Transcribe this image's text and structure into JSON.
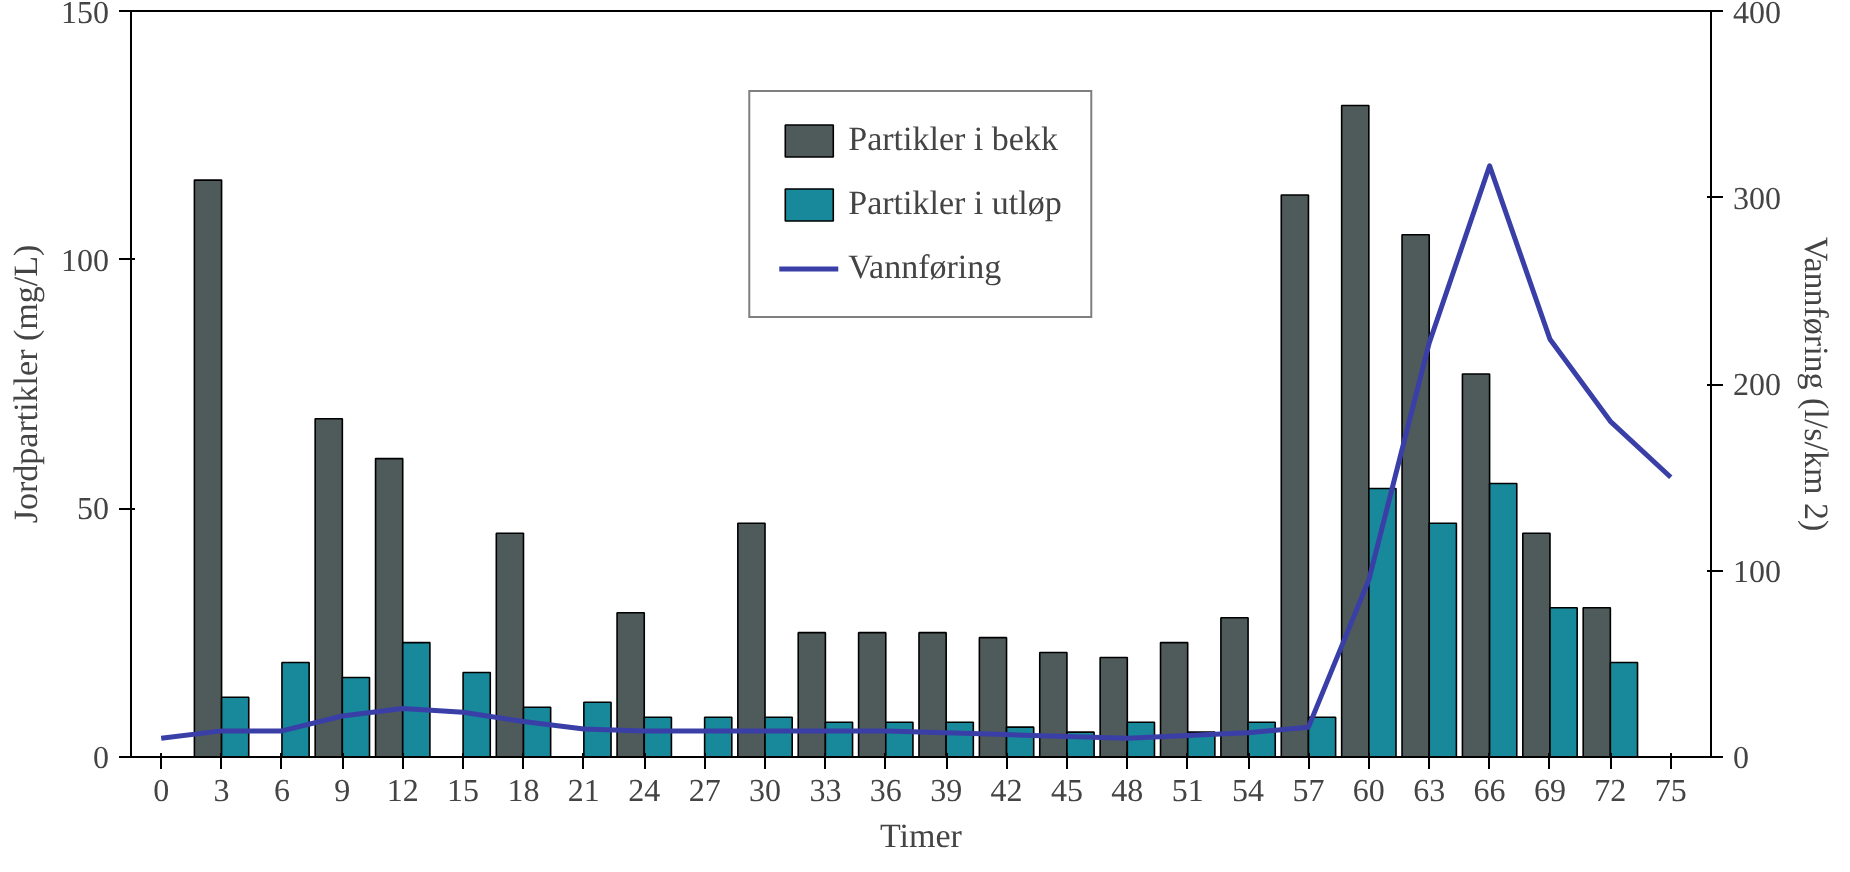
{
  "chart_data": {
    "type": "bar",
    "xlabel": "Timer",
    "ylabel": "Jordpartikler (mg/L)",
    "y2label": "Vannføring (l/s/km 2)",
    "x": [
      3,
      6,
      9,
      12,
      15,
      18,
      21,
      24,
      27,
      30,
      33,
      36,
      39,
      42,
      45,
      48,
      51,
      54,
      57,
      60,
      63,
      66,
      69,
      72
    ],
    "xlim": [
      -1.5,
      77
    ],
    "xticks": [
      0,
      3,
      6,
      9,
      12,
      15,
      18,
      21,
      24,
      27,
      30,
      33,
      36,
      39,
      42,
      45,
      48,
      51,
      54,
      57,
      60,
      63,
      66,
      69,
      72,
      75
    ],
    "ylim": [
      0,
      150
    ],
    "yticks": [
      0,
      50,
      100,
      150
    ],
    "y2lim": [
      0,
      400
    ],
    "y2ticks": [
      0,
      100,
      200,
      300,
      400
    ],
    "series": [
      {
        "name": "Partikler i bekk",
        "color": "#4f5a5a",
        "values": [
          116,
          null,
          68,
          60,
          null,
          45,
          null,
          29,
          null,
          47,
          25,
          25,
          25,
          24,
          21,
          20,
          23,
          28,
          113,
          131,
          105,
          77,
          45,
          30
        ]
      },
      {
        "name": "Partikler i utløp",
        "color": "#17899a",
        "values": [
          12,
          19,
          16,
          23,
          17,
          10,
          11,
          8,
          8,
          8,
          7,
          7,
          7,
          6,
          5,
          7,
          5,
          7,
          8,
          54,
          47,
          55,
          30,
          19
        ]
      },
      {
        "name": "Vannføring",
        "type": "line",
        "axis": "y2",
        "color": "#3a3fa8",
        "x": [
          0,
          3,
          6,
          9,
          12,
          15,
          18,
          21,
          24,
          30,
          36,
          42,
          48,
          54,
          57,
          60,
          63,
          66,
          69,
          72,
          75
        ],
        "values": [
          10,
          14,
          14,
          22,
          26,
          24,
          19,
          15,
          14,
          14,
          14,
          12,
          10,
          13,
          16,
          95,
          222,
          317,
          224,
          180,
          150
        ]
      }
    ],
    "grid": false,
    "legend": "top"
  }
}
